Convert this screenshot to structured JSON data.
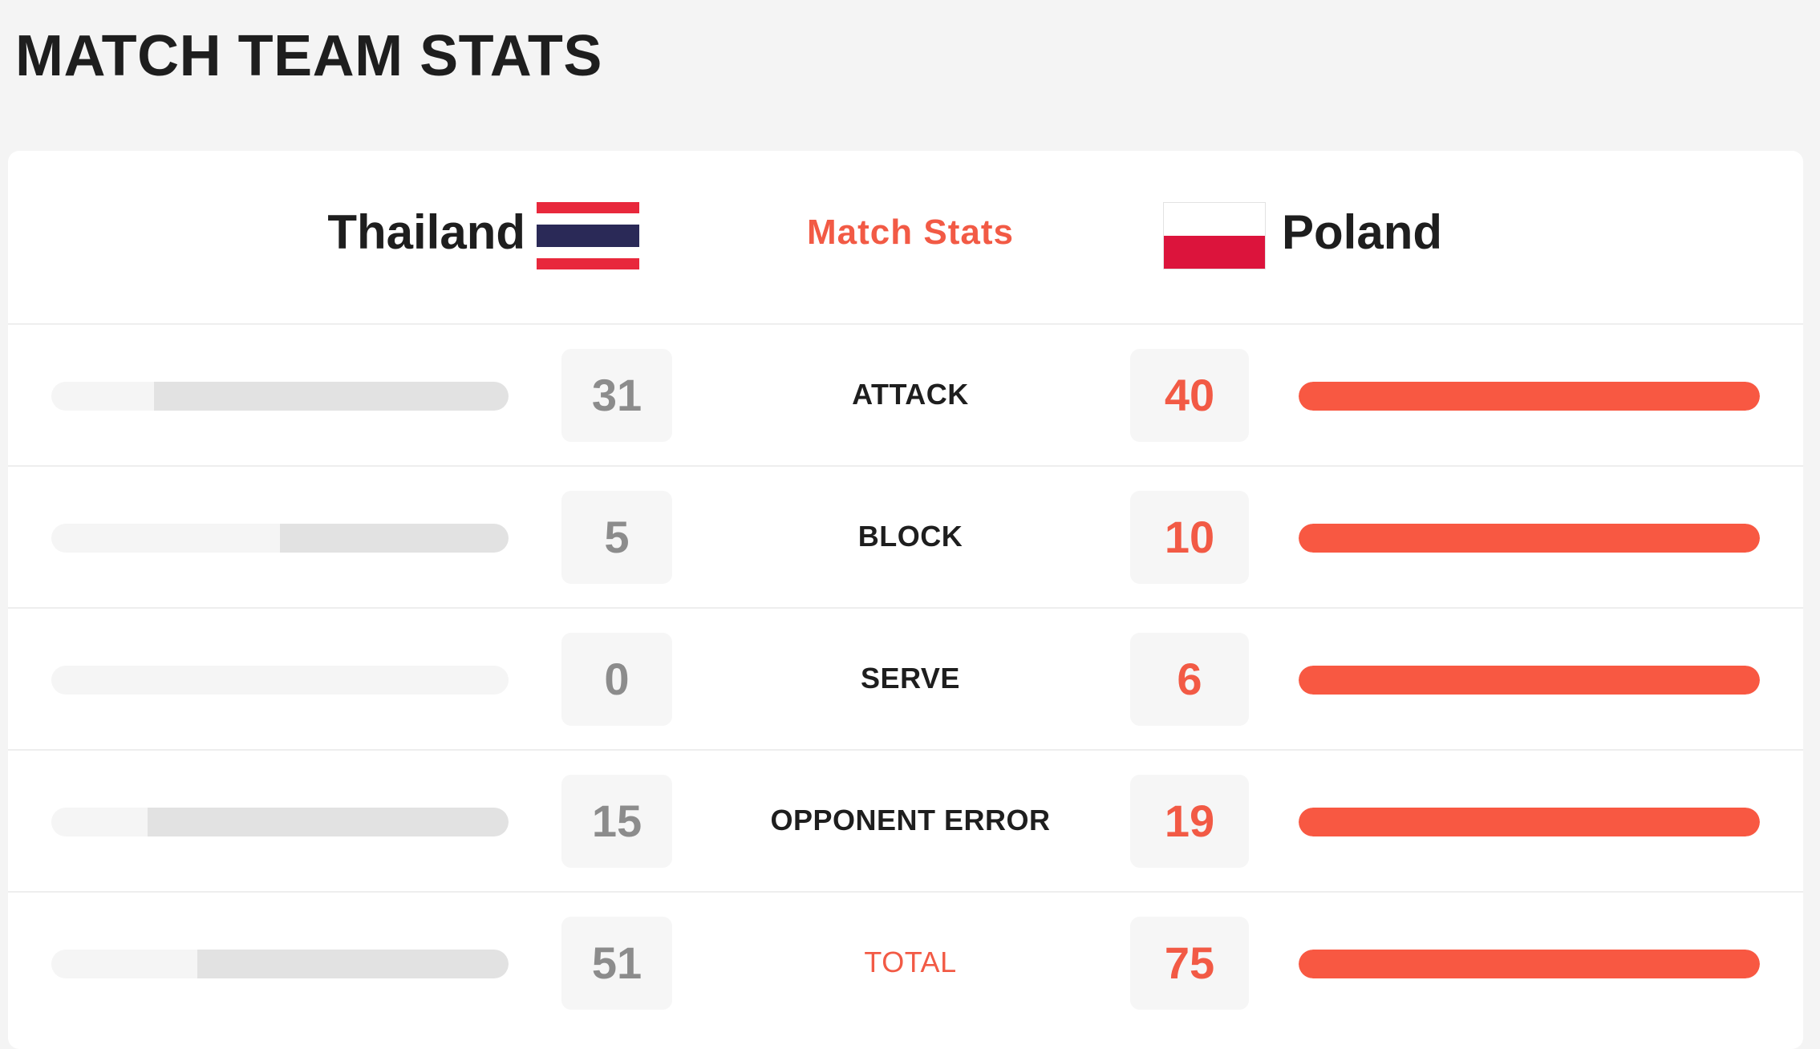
{
  "page_title": "MATCH TEAM STATS",
  "header": {
    "home_team": "Thailand",
    "away_team": "Poland",
    "center_label": "Match Stats",
    "home_flag_icon": "thailand-flag-icon",
    "away_flag_icon": "poland-flag-icon"
  },
  "colors": {
    "accent": "#f25a45",
    "away_bar": "#f85842",
    "home_bar": "#e2e2e2",
    "bar_track": "#f5f5f5",
    "value_box": "#f6f6f6"
  },
  "stats": [
    {
      "label": "ATTACK",
      "home": "31",
      "away": "40",
      "home_share": 0.775,
      "away_share": 1.0
    },
    {
      "label": "BLOCK",
      "home": "5",
      "away": "10",
      "home_share": 0.5,
      "away_share": 1.0
    },
    {
      "label": "SERVE",
      "home": "0",
      "away": "6",
      "home_share": 0.0,
      "away_share": 1.0
    },
    {
      "label": "OPPONENT ERROR",
      "home": "15",
      "away": "19",
      "home_share": 0.7895,
      "away_share": 1.0
    },
    {
      "label": "TOTAL",
      "home": "51",
      "away": "75",
      "home_share": 0.68,
      "away_share": 1.0
    }
  ]
}
